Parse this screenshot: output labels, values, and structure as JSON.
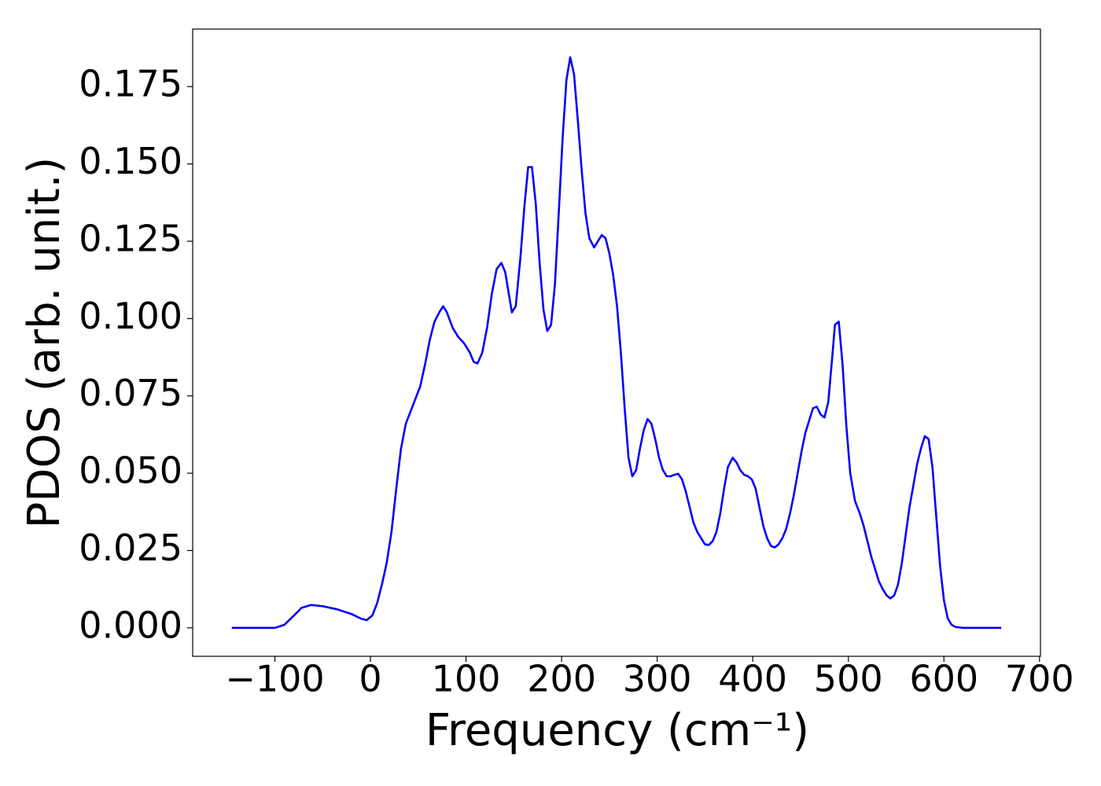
{
  "chart_data": {
    "type": "line",
    "xlabel": "Frequency (cm⁻¹)",
    "ylabel": "PDOS (arb. unit.)",
    "xlim": [
      -186,
      701
    ],
    "ylim": [
      -0.0092,
      0.1936
    ],
    "xticks": [
      {
        "value": -100,
        "label": "−100"
      },
      0,
      100,
      200,
      300,
      400,
      500,
      600,
      700
    ],
    "yticks": [
      {
        "value": 0,
        "label": "0.000"
      },
      {
        "value": 0.025,
        "label": "0.025"
      },
      {
        "value": 0.05,
        "label": "0.050"
      },
      {
        "value": 0.075,
        "label": "0.075"
      },
      {
        "value": 0.1,
        "label": "0.100"
      },
      {
        "value": 0.125,
        "label": "0.125"
      },
      {
        "value": 0.15,
        "label": "0.150"
      },
      {
        "value": 0.175,
        "label": "0.175"
      }
    ],
    "series": [
      {
        "color": "#0000ff",
        "x": [
          -145,
          -100,
          -90,
          -80,
          -72,
          -62,
          -50,
          -35,
          -20,
          -10,
          -4,
          2,
          7,
          12,
          17,
          22,
          27,
          32,
          37,
          42,
          47,
          52,
          57,
          62,
          67,
          72,
          76,
          80,
          86,
          92,
          98,
          104,
          108,
          112,
          117,
          122,
          127,
          132,
          137,
          141,
          148,
          152,
          157,
          161,
          165,
          169,
          173,
          177,
          181,
          185,
          189,
          193,
          197,
          201,
          205,
          209,
          213,
          217,
          221,
          225,
          229,
          234,
          238,
          242,
          246,
          250,
          254,
          258,
          262,
          266,
          270,
          274,
          278,
          282,
          286,
          290,
          294,
          298,
          302,
          306,
          310,
          314,
          318,
          322,
          326,
          330,
          334,
          338,
          342,
          346,
          350,
          354,
          358,
          362,
          366,
          370,
          374,
          379,
          383,
          387,
          391,
          395,
          399,
          403,
          407,
          411,
          415,
          419,
          423,
          427,
          431,
          435,
          439,
          443,
          447,
          451,
          455,
          459,
          463,
          467,
          471,
          475,
          479,
          483,
          486,
          490,
          494,
          498,
          502,
          507,
          512,
          516,
          520,
          524,
          528,
          532,
          536,
          540,
          544,
          548,
          552,
          556,
          560,
          564,
          568,
          572,
          576,
          580,
          584,
          588,
          592,
          596,
          600,
          604,
          608,
          612,
          620,
          660
        ],
        "values": [
          0,
          0,
          0.001,
          0.004,
          0.0065,
          0.0074,
          0.007,
          0.006,
          0.0045,
          0.003,
          0.0025,
          0.004,
          0.008,
          0.014,
          0.021,
          0.031,
          0.045,
          0.058,
          0.066,
          0.07,
          0.074,
          0.078,
          0.085,
          0.093,
          0.099,
          0.102,
          0.104,
          0.102,
          0.097,
          0.094,
          0.092,
          0.089,
          0.086,
          0.0855,
          0.089,
          0.097,
          0.108,
          0.116,
          0.118,
          0.115,
          0.102,
          0.104,
          0.12,
          0.136,
          0.149,
          0.149,
          0.137,
          0.118,
          0.103,
          0.096,
          0.098,
          0.111,
          0.134,
          0.158,
          0.177,
          0.1845,
          0.179,
          0.164,
          0.148,
          0.134,
          0.126,
          0.123,
          0.125,
          0.127,
          0.126,
          0.121,
          0.114,
          0.104,
          0.089,
          0.071,
          0.055,
          0.049,
          0.051,
          0.058,
          0.064,
          0.0675,
          0.066,
          0.061,
          0.055,
          0.051,
          0.049,
          0.049,
          0.0495,
          0.0498,
          0.048,
          0.044,
          0.039,
          0.034,
          0.031,
          0.029,
          0.027,
          0.0268,
          0.028,
          0.031,
          0.037,
          0.045,
          0.052,
          0.055,
          0.0535,
          0.051,
          0.0495,
          0.049,
          0.048,
          0.045,
          0.039,
          0.033,
          0.029,
          0.0265,
          0.026,
          0.027,
          0.029,
          0.032,
          0.037,
          0.043,
          0.05,
          0.057,
          0.063,
          0.067,
          0.071,
          0.0715,
          0.069,
          0.068,
          0.073,
          0.087,
          0.098,
          0.099,
          0.085,
          0.065,
          0.05,
          0.041,
          0.037,
          0.033,
          0.028,
          0.023,
          0.019,
          0.015,
          0.0125,
          0.0105,
          0.0095,
          0.0105,
          0.014,
          0.021,
          0.03,
          0.039,
          0.046,
          0.053,
          0.058,
          0.062,
          0.061,
          0.052,
          0.036,
          0.02,
          0.009,
          0.003,
          0.001,
          0.0003,
          0,
          0
        ]
      }
    ]
  }
}
